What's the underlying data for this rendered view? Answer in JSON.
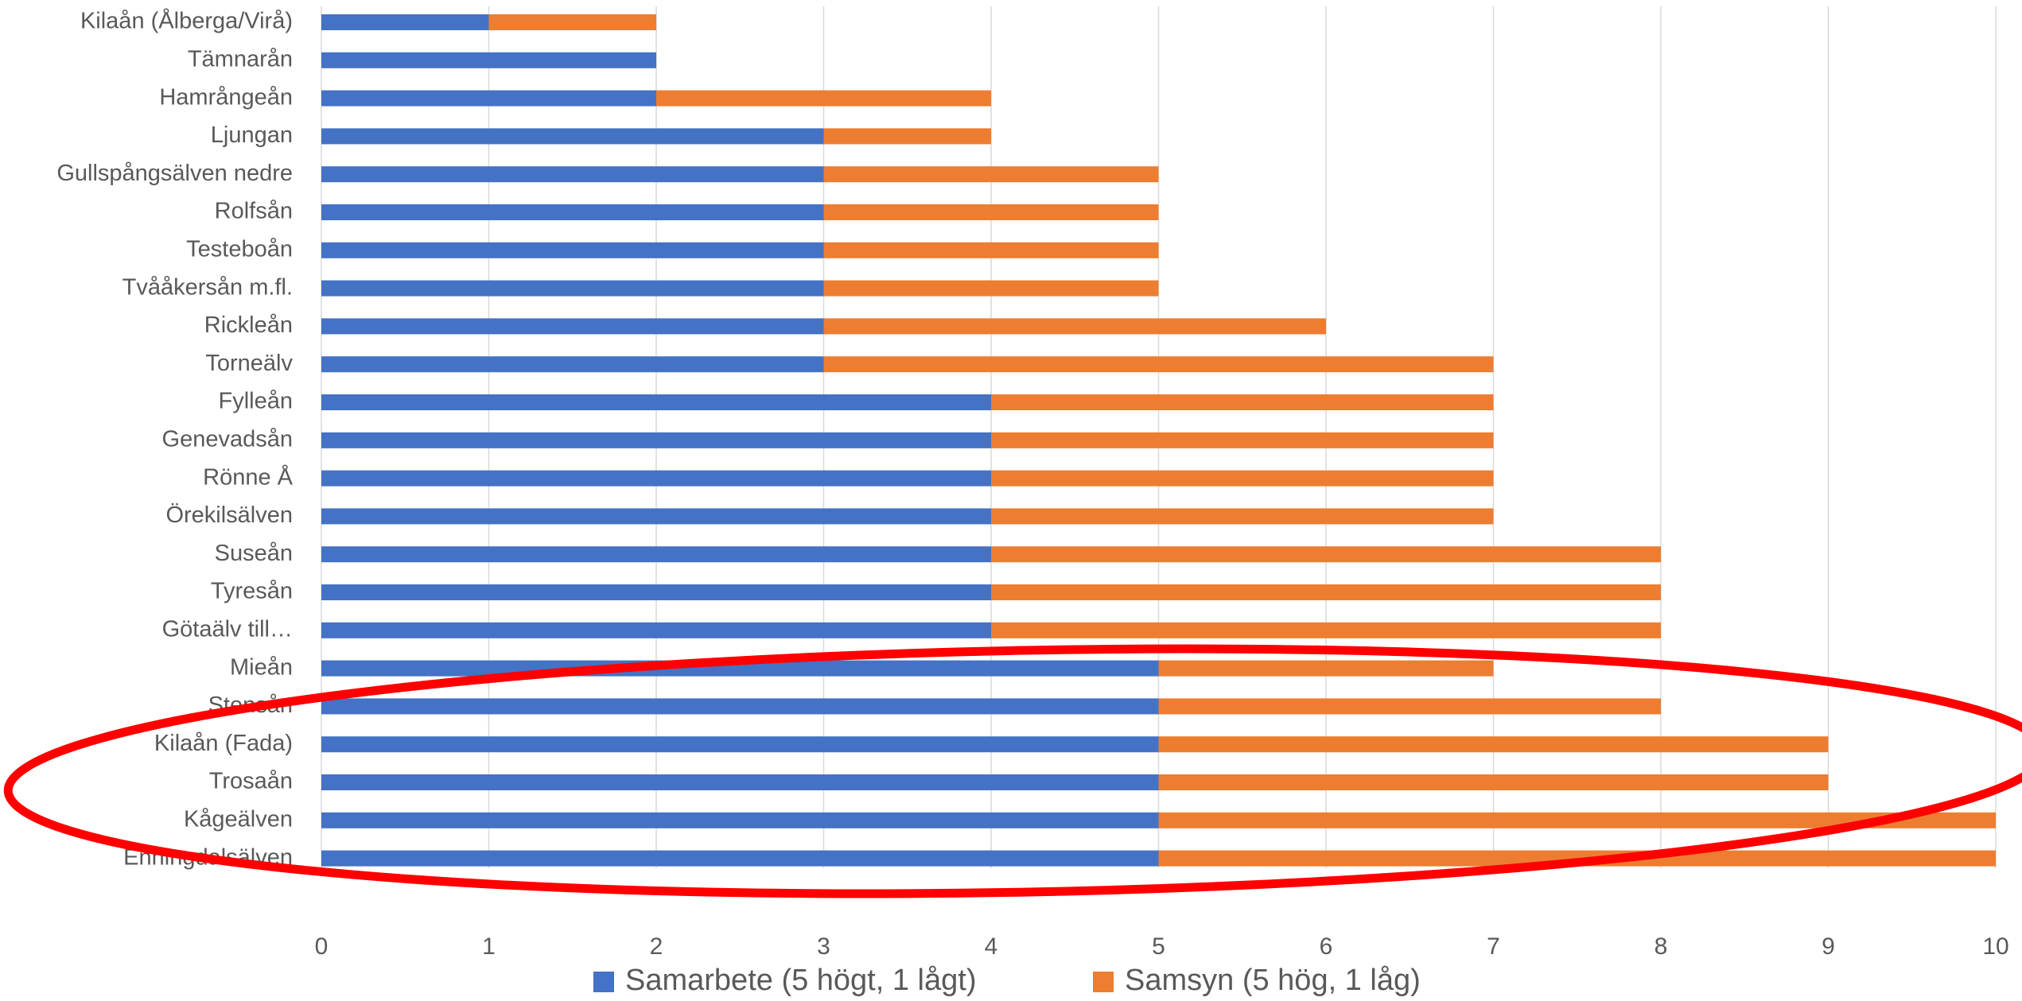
{
  "chart_data": {
    "type": "bar",
    "orientation": "horizontal",
    "stacked": true,
    "categories": [
      "Kilaån (Ålberga/Virå)",
      "Tämnarån",
      "Hamrångeån",
      "Ljungan",
      "Gullspångsälven nedre",
      "Rolfsån",
      "Testeboån",
      "Tvååkersån m.fl.",
      "Rickleån",
      "Torneälv",
      "Fylleån",
      "Genevadsån",
      "Rönne Å",
      "Örekilsälven",
      "Suseån",
      "Tyresån",
      "Götaälv till…",
      "Mieån",
      "Stensån",
      "Kilaån (Fada)",
      "Trosaån",
      "Kågeälven",
      "Enningdalsälven"
    ],
    "series": [
      {
        "name": "Samarbete (5 högt, 1 lågt)",
        "color": "#4472c4",
        "values": [
          1,
          2,
          2,
          3,
          3,
          3,
          3,
          3,
          3,
          3,
          4,
          4,
          4,
          4,
          4,
          4,
          4,
          5,
          5,
          5,
          5,
          5,
          5
        ]
      },
      {
        "name": "Samsyn (5 hög, 1 låg)",
        "color": "#ed7d31",
        "values": [
          1,
          0,
          2,
          1,
          2,
          2,
          2,
          2,
          3,
          4,
          3,
          3,
          3,
          3,
          4,
          4,
          4,
          2,
          3,
          4,
          4,
          5,
          5
        ]
      }
    ],
    "xlim": [
      0,
      10
    ],
    "xticks": [
      0,
      1,
      2,
      3,
      4,
      5,
      6,
      7,
      8,
      9,
      10
    ],
    "grid": true,
    "legend_position": "bottom",
    "annotation": {
      "shape": "ellipse",
      "color": "#ff0000",
      "highlights": [
        "Mieån",
        "Stensån",
        "Kilaån (Fada)",
        "Trosaån",
        "Kågeälven",
        "Enningdalsälven"
      ]
    }
  }
}
